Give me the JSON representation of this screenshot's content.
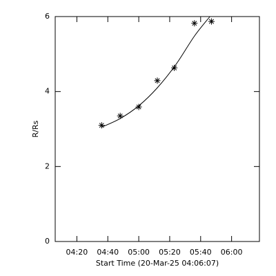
{
  "chart_data": {
    "type": "scatter",
    "xlabel": "Start Time (20-Mar-25 04:06:07)",
    "ylabel": "R/Rs",
    "xlim": [
      "04:06",
      "06:18"
    ],
    "xticks": [
      "04:20",
      "04:40",
      "05:00",
      "05:20",
      "05:40",
      "06:00"
    ],
    "ylim": [
      0,
      6
    ],
    "yticks": [
      0,
      2,
      4,
      6
    ],
    "color": "#000000",
    "series": [
      {
        "mode": "markers",
        "x": [
          "04:36",
          "04:48",
          "05:00",
          "05:12",
          "05:23",
          "05:36",
          "05:47"
        ],
        "values": [
          3.1,
          3.35,
          3.59,
          4.29,
          4.63,
          5.82,
          5.87
        ]
      },
      {
        "mode": "line",
        "x": [
          "04:36",
          "04:48",
          "05:00",
          "05:12",
          "05:24",
          "05:36",
          "05:46"
        ],
        "values": [
          3.05,
          3.28,
          3.62,
          4.1,
          4.72,
          5.48,
          6.0
        ]
      }
    ]
  }
}
